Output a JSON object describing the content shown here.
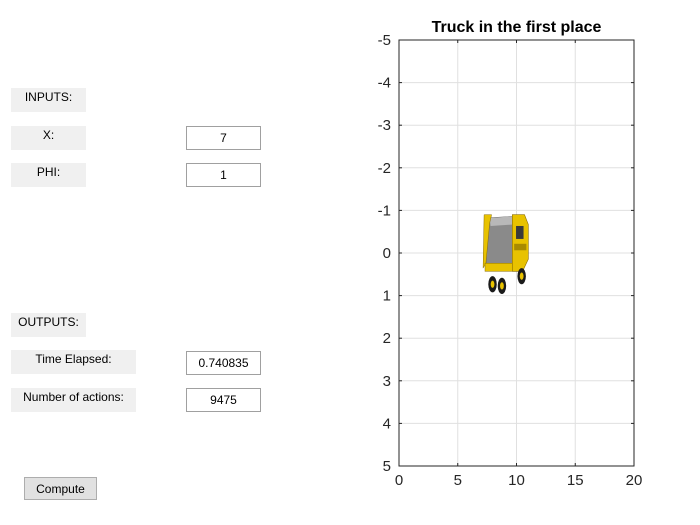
{
  "inputs": {
    "header": "INPUTS:",
    "x_label": "X:",
    "x_value": "7",
    "phi_label": "PHI:",
    "phi_value": "1"
  },
  "outputs": {
    "header": "OUTPUTS:",
    "time_label": "Time Elapsed:",
    "time_value": "0.740835",
    "actions_label": "Number of actions:",
    "actions_value": "9475"
  },
  "compute_button": {
    "label": "Compute"
  },
  "chart_data": {
    "type": "scatter",
    "title": "Truck in the first place",
    "xlabel": "",
    "ylabel": "",
    "xlim": [
      0,
      20
    ],
    "ylim": [
      -5,
      5
    ],
    "y_reversed": true,
    "grid": true,
    "x_ticks": [
      0,
      5,
      10,
      15,
      20
    ],
    "y_ticks": [
      -5,
      -4,
      -3,
      -2,
      -1,
      0,
      1,
      2,
      3,
      4,
      5
    ],
    "truck_image": {
      "x_range": [
        7,
        11
      ],
      "y_range": [
        -0.9,
        1.0
      ],
      "color": "#e8c200"
    }
  },
  "colors": {
    "panel_bg": "#f0f0f0",
    "truck_yellow": "#e8c200",
    "truck_body_gray": "#8a8a8a"
  }
}
